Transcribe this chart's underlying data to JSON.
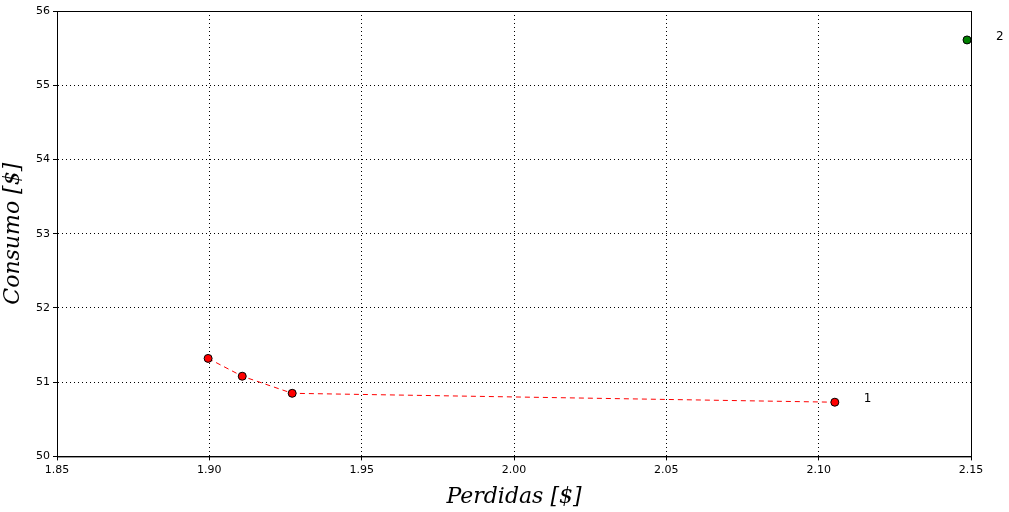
{
  "chart_data": {
    "type": "scatter",
    "xlabel": "Perdidas [$]",
    "ylabel": "Consumo [$]",
    "xlim": [
      1.85,
      2.15
    ],
    "xticks": [
      {
        "value": 1.85,
        "label": "1.85"
      },
      {
        "value": 1.9,
        "label": "1.90"
      },
      {
        "value": 1.95,
        "label": "1.95"
      },
      {
        "value": 2.0,
        "label": "2.00"
      },
      {
        "value": 2.05,
        "label": "2.05"
      },
      {
        "value": 2.1,
        "label": "2.10"
      },
      {
        "value": 2.15,
        "label": "2.15"
      }
    ],
    "ylim": [
      50,
      56
    ],
    "yticks": [
      50,
      51,
      52,
      53,
      54,
      55,
      56
    ],
    "grid": true,
    "marker": "circle",
    "series": [
      {
        "type": "line",
        "line_style": "dashed",
        "color": "#ff0000",
        "x": [
          1.8996,
          1.9108,
          1.9272,
          2.1053
        ],
        "values": [
          51.32,
          51.08,
          50.85,
          50.73
        ]
      },
      {
        "type": "scatter",
        "color": "#008000",
        "x": [
          2.1487
        ],
        "values": [
          55.61
        ]
      }
    ],
    "annotations": [
      {
        "text": "1",
        "x": 2.1053,
        "y": 50.73
      },
      {
        "text": "2",
        "x": 2.1487,
        "y": 55.61
      }
    ]
  }
}
